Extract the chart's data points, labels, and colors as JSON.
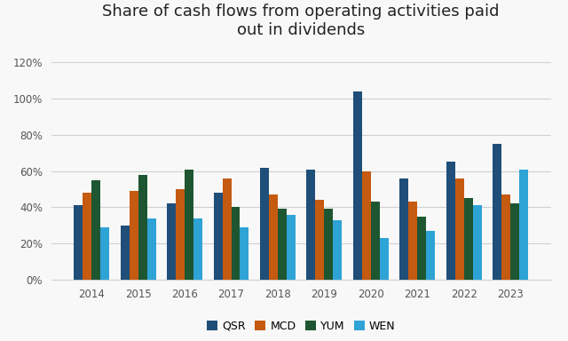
{
  "title": "Share of cash flows from operating activities paid\nout in dividends",
  "years": [
    2014,
    2015,
    2016,
    2017,
    2018,
    2019,
    2020,
    2021,
    2022,
    2023
  ],
  "series": {
    "QSR": [
      0.41,
      0.3,
      0.42,
      0.48,
      0.62,
      0.61,
      1.04,
      0.56,
      0.65,
      0.75
    ],
    "MCD": [
      0.48,
      0.49,
      0.5,
      0.56,
      0.47,
      0.44,
      0.6,
      0.43,
      0.56,
      0.47
    ],
    "YUM": [
      0.55,
      0.58,
      0.61,
      0.4,
      0.39,
      0.39,
      0.43,
      0.35,
      0.45,
      0.42
    ],
    "WEN": [
      0.29,
      0.34,
      0.34,
      0.29,
      0.36,
      0.33,
      0.23,
      0.27,
      0.41,
      0.61
    ]
  },
  "colors": {
    "QSR": "#1f4e79",
    "MCD": "#c55a11",
    "YUM": "#1e5631",
    "WEN": "#2ea3d5"
  },
  "ylim": [
    0,
    1.3
  ],
  "yticks": [
    0,
    0.2,
    0.4,
    0.6,
    0.8,
    1.0,
    1.2
  ],
  "ytick_labels": [
    "0%",
    "20%",
    "40%",
    "60%",
    "80%",
    "100%",
    "120%"
  ],
  "background_color": "#f8f8f8",
  "grid_color": "#d0d0d0",
  "title_fontsize": 13,
  "bar_width": 0.19,
  "tick_fontsize": 8.5
}
